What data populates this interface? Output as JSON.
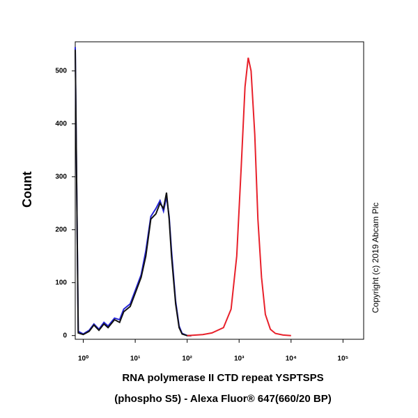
{
  "chart_data": {
    "type": "line",
    "x_label": [
      "RNA polymerase II CTD repeat YSPTSPS",
      "(phospho S5) - Alexa Fluor® 647(660/20 BP)"
    ],
    "y_label": "Count",
    "annotation": "Copyright (c) 2019 Abcam Plc",
    "xscale": "log",
    "xlim": [
      0.7,
      250000
    ],
    "ylim": [
      -7,
      555
    ],
    "xticks": [
      {
        "value": 1,
        "label": "10⁰"
      },
      {
        "value": 10,
        "label": "10¹"
      },
      {
        "value": 100,
        "label": "10²"
      },
      {
        "value": 1000,
        "label": "10³"
      },
      {
        "value": 10000,
        "label": "10⁴"
      },
      {
        "value": 100000,
        "label": "10⁵"
      }
    ],
    "yticks": [
      0,
      100,
      200,
      300,
      400,
      500
    ],
    "series": [
      {
        "color": "#2323d8",
        "x": [
          0.7,
          0.8,
          1,
          1.3,
          1.6,
          2,
          2.5,
          3,
          4,
          5,
          6,
          8,
          10,
          13,
          16,
          20,
          25,
          30,
          35,
          40,
          45,
          50,
          60,
          70,
          80,
          100,
          120
        ],
        "values": [
          545,
          8,
          3,
          10,
          22,
          12,
          25,
          18,
          33,
          30,
          50,
          60,
          85,
          115,
          160,
          225,
          240,
          255,
          235,
          262,
          225,
          160,
          65,
          18,
          4,
          0,
          0
        ]
      },
      {
        "color": "#111111",
        "x": [
          0.7,
          0.8,
          1,
          1.3,
          1.6,
          2,
          2.5,
          3,
          4,
          5,
          6,
          8,
          10,
          13,
          16,
          20,
          25,
          30,
          35,
          40,
          45,
          50,
          60,
          70,
          80,
          100,
          120
        ],
        "values": [
          540,
          5,
          2,
          8,
          20,
          10,
          22,
          15,
          30,
          25,
          45,
          55,
          80,
          110,
          150,
          220,
          230,
          250,
          240,
          270,
          220,
          150,
          60,
          15,
          3,
          0,
          0
        ]
      },
      {
        "color": "#e8202a",
        "x": [
          100,
          200,
          300,
          500,
          700,
          900,
          1100,
          1300,
          1500,
          1700,
          2000,
          2300,
          2700,
          3200,
          4000,
          5000,
          7000,
          10000
        ],
        "values": [
          0,
          2,
          5,
          15,
          50,
          150,
          320,
          470,
          525,
          500,
          380,
          220,
          110,
          40,
          12,
          4,
          1,
          0
        ]
      }
    ]
  }
}
